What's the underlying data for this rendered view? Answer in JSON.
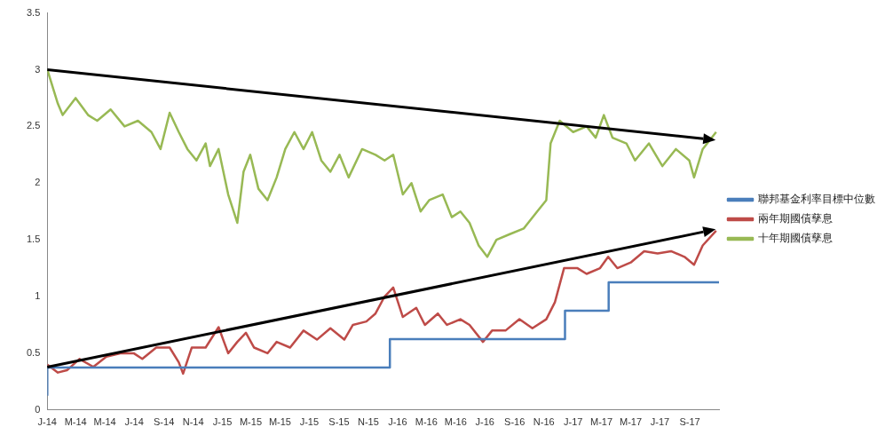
{
  "chart_data": {
    "type": "line",
    "legend": "right",
    "grid": false,
    "marker": "none",
    "xlim": [
      "2014-01-01",
      "2017-11-01"
    ],
    "ylim": [
      0,
      3.5
    ],
    "yticks": [
      0,
      0.5,
      1,
      1.5,
      2,
      2.5,
      3,
      3.5
    ],
    "xticks": [
      {
        "value": "2014-01-01",
        "label": "J-14"
      },
      {
        "value": "2014-03-01",
        "label": "M-14"
      },
      {
        "value": "2014-05-01",
        "label": "M-14"
      },
      {
        "value": "2014-07-01",
        "label": "J-14"
      },
      {
        "value": "2014-09-01",
        "label": "S-14"
      },
      {
        "value": "2014-11-01",
        "label": "N-14"
      },
      {
        "value": "2015-01-01",
        "label": "J-15"
      },
      {
        "value": "2015-03-01",
        "label": "M-15"
      },
      {
        "value": "2015-05-01",
        "label": "M-15"
      },
      {
        "value": "2015-07-01",
        "label": "J-15"
      },
      {
        "value": "2015-09-01",
        "label": "S-15"
      },
      {
        "value": "2015-11-01",
        "label": "N-15"
      },
      {
        "value": "2016-01-01",
        "label": "J-16"
      },
      {
        "value": "2016-03-01",
        "label": "M-16"
      },
      {
        "value": "2016-05-01",
        "label": "M-16"
      },
      {
        "value": "2016-07-01",
        "label": "J-16"
      },
      {
        "value": "2016-09-01",
        "label": "S-16"
      },
      {
        "value": "2016-11-01",
        "label": "N-16"
      },
      {
        "value": "2017-01-01",
        "label": "J-17"
      },
      {
        "value": "2017-03-01",
        "label": "M-17"
      },
      {
        "value": "2017-05-01",
        "label": "M-17"
      },
      {
        "value": "2017-07-01",
        "label": "J-17"
      },
      {
        "value": "2017-09-01",
        "label": "S-17"
      }
    ],
    "series": [
      {
        "name": "聯邦基金利率目標中位數",
        "type": "step",
        "color": "#4a7ebb",
        "x": [
          "2014-01-01",
          "2015-12-16",
          "2016-12-15",
          "2017-03-16",
          "2017-06-15",
          "2017-11-01"
        ],
        "values": [
          0.125,
          0.375,
          0.625,
          0.875,
          1.125,
          1.125
        ]
      },
      {
        "name": "兩年期國債孳息",
        "type": "line",
        "color": "#be4b48",
        "x": [
          "2014-01-01",
          "2014-01-23",
          "2014-02-11",
          "2014-03-09",
          "2014-04-07",
          "2014-05-04",
          "2014-06-02",
          "2014-06-30",
          "2014-07-18",
          "2014-08-16",
          "2014-09-13",
          "2014-10-02",
          "2014-10-11",
          "2014-10-29",
          "2014-11-27",
          "2014-12-24",
          "2015-01-13",
          "2015-02-01",
          "2015-02-19",
          "2015-03-08",
          "2015-04-05",
          "2015-04-24",
          "2015-05-22",
          "2015-06-19",
          "2015-07-17",
          "2015-08-14",
          "2015-09-12",
          "2015-09-30",
          "2015-10-28",
          "2015-11-16",
          "2015-12-05",
          "2015-12-23",
          "2016-01-12",
          "2016-02-09",
          "2016-02-27",
          "2016-03-25",
          "2016-04-13",
          "2016-05-11",
          "2016-05-30",
          "2016-06-27",
          "2016-07-16",
          "2016-08-13",
          "2016-09-11",
          "2016-10-08",
          "2016-11-06",
          "2016-11-24",
          "2016-12-13",
          "2017-01-10",
          "2017-01-29",
          "2017-02-26",
          "2017-03-15",
          "2017-04-03",
          "2017-05-01",
          "2017-05-29",
          "2017-06-26",
          "2017-07-24",
          "2017-08-21",
          "2017-09-10",
          "2017-09-28",
          "2017-10-26"
        ],
        "values": [
          0.4,
          0.33,
          0.35,
          0.45,
          0.38,
          0.47,
          0.5,
          0.5,
          0.45,
          0.55,
          0.55,
          0.42,
          0.32,
          0.55,
          0.55,
          0.73,
          0.5,
          0.6,
          0.68,
          0.55,
          0.5,
          0.6,
          0.55,
          0.7,
          0.62,
          0.72,
          0.62,
          0.75,
          0.78,
          0.85,
          1.0,
          1.08,
          0.82,
          0.9,
          0.75,
          0.85,
          0.75,
          0.8,
          0.75,
          0.6,
          0.7,
          0.7,
          0.8,
          0.72,
          0.8,
          0.95,
          1.25,
          1.25,
          1.2,
          1.25,
          1.35,
          1.25,
          1.3,
          1.4,
          1.38,
          1.4,
          1.35,
          1.28,
          1.45,
          1.58
        ]
      },
      {
        "name": "十年期國債孳息",
        "type": "line",
        "color": "#98b954",
        "x": [
          "2014-01-01",
          "2014-01-23",
          "2014-02-02",
          "2014-03-01",
          "2014-03-27",
          "2014-04-15",
          "2014-05-13",
          "2014-06-11",
          "2014-07-09",
          "2014-08-06",
          "2014-08-25",
          "2014-09-13",
          "2014-10-02",
          "2014-10-20",
          "2014-11-08",
          "2014-11-27",
          "2014-12-06",
          "2014-12-24",
          "2015-01-13",
          "2015-02-01",
          "2015-02-14",
          "2015-02-28",
          "2015-03-17",
          "2015-04-05",
          "2015-04-24",
          "2015-05-12",
          "2015-05-31",
          "2015-06-19",
          "2015-07-07",
          "2015-07-26",
          "2015-08-14",
          "2015-09-02",
          "2015-09-21",
          "2015-10-19",
          "2015-11-16",
          "2015-12-05",
          "2015-12-23",
          "2016-01-12",
          "2016-01-30",
          "2016-02-18",
          "2016-03-07",
          "2016-04-04",
          "2016-04-23",
          "2016-05-11",
          "2016-05-30",
          "2016-06-18",
          "2016-07-06",
          "2016-07-25",
          "2016-08-22",
          "2016-09-20",
          "2016-10-18",
          "2016-11-06",
          "2016-11-15",
          "2016-12-04",
          "2017-01-01",
          "2017-01-29",
          "2017-02-17",
          "2017-03-06",
          "2017-03-24",
          "2017-04-22",
          "2017-05-10",
          "2017-06-08",
          "2017-07-06",
          "2017-08-03",
          "2017-08-31",
          "2017-09-10",
          "2017-09-28",
          "2017-10-26"
        ],
        "values": [
          3.0,
          2.7,
          2.6,
          2.75,
          2.6,
          2.55,
          2.65,
          2.5,
          2.55,
          2.45,
          2.3,
          2.62,
          2.45,
          2.3,
          2.2,
          2.35,
          2.15,
          2.3,
          1.9,
          1.65,
          2.1,
          2.25,
          1.95,
          1.85,
          2.05,
          2.3,
          2.45,
          2.3,
          2.45,
          2.2,
          2.1,
          2.25,
          2.05,
          2.3,
          2.25,
          2.2,
          2.25,
          1.9,
          2.0,
          1.75,
          1.85,
          1.9,
          1.7,
          1.75,
          1.65,
          1.45,
          1.35,
          1.5,
          1.55,
          1.6,
          1.75,
          1.85,
          2.35,
          2.55,
          2.45,
          2.5,
          2.4,
          2.6,
          2.4,
          2.35,
          2.2,
          2.35,
          2.15,
          2.3,
          2.2,
          2.05,
          2.3,
          2.45
        ]
      }
    ]
  }
}
